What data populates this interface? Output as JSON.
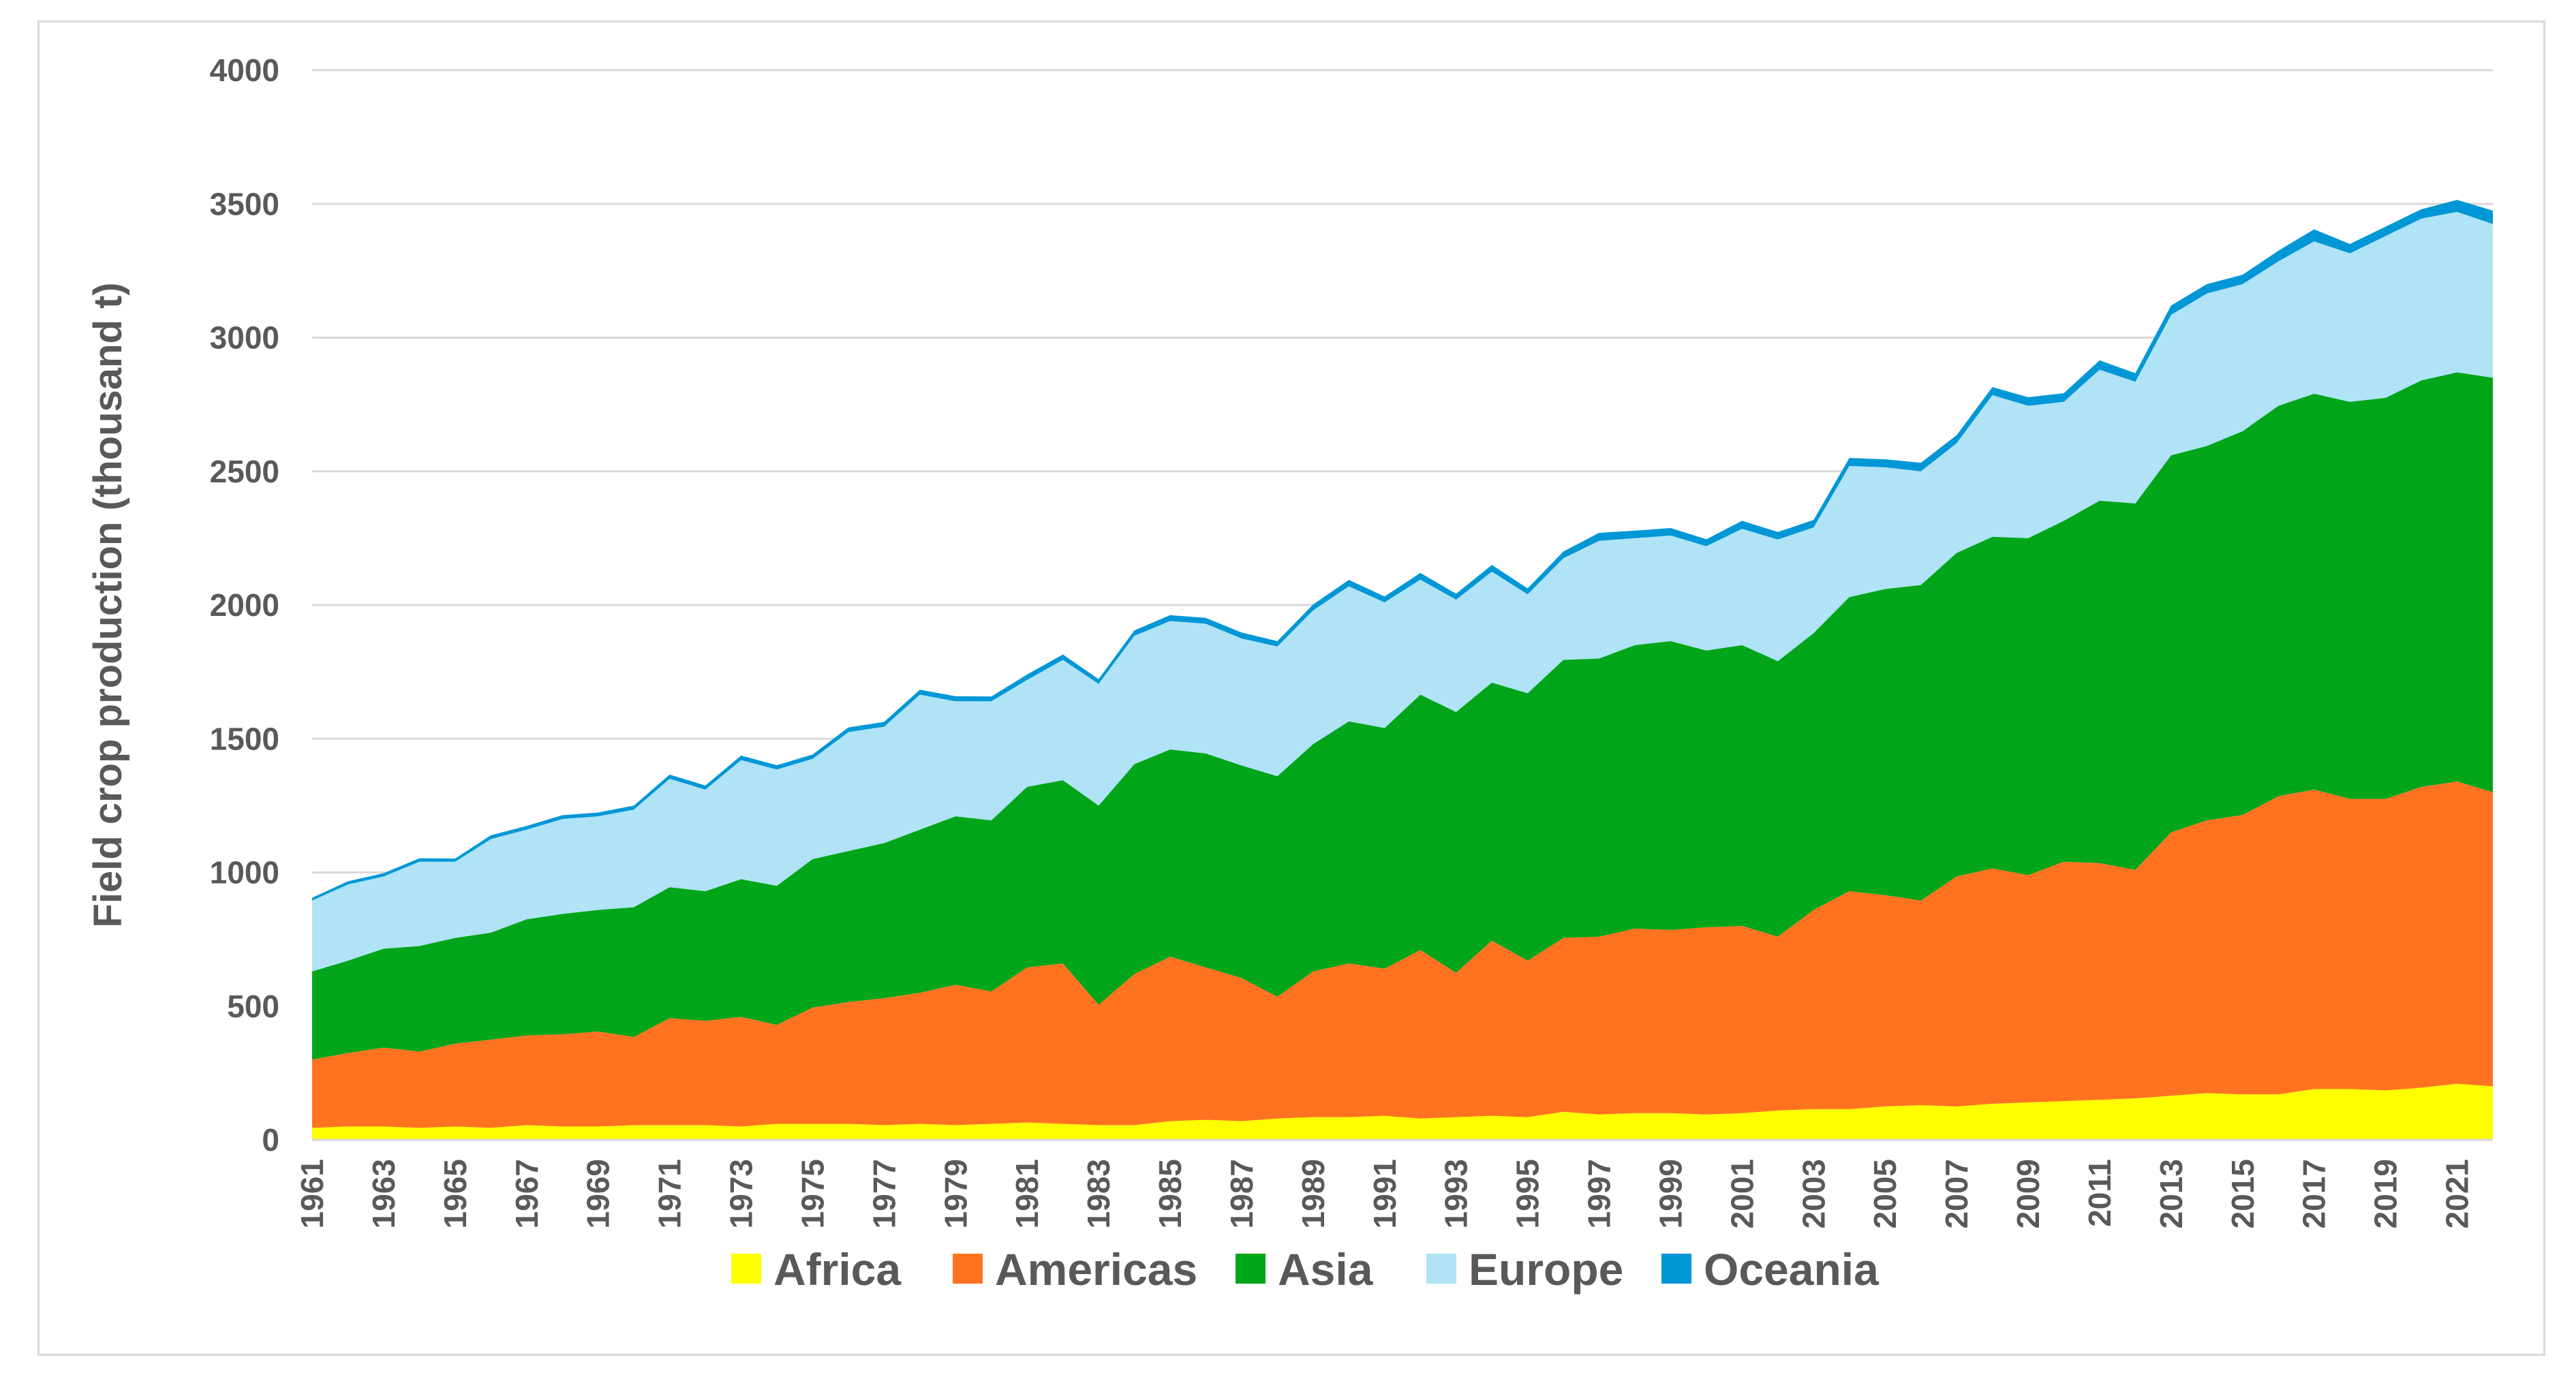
{
  "chart_data": {
    "type": "area",
    "stacked": true,
    "title": "",
    "xlabel": "",
    "ylabel": "Field crop production (thousand t)",
    "ylim": [
      0,
      4000
    ],
    "yticks": [
      0,
      500,
      1000,
      1500,
      2000,
      2500,
      3000,
      3500,
      4000
    ],
    "grid": true,
    "legend_position": "bottom",
    "x": [
      1961,
      1962,
      1963,
      1964,
      1965,
      1966,
      1967,
      1968,
      1969,
      1970,
      1971,
      1972,
      1973,
      1974,
      1975,
      1976,
      1977,
      1978,
      1979,
      1980,
      1981,
      1982,
      1983,
      1984,
      1985,
      1986,
      1987,
      1988,
      1989,
      1990,
      1991,
      1992,
      1993,
      1994,
      1995,
      1996,
      1997,
      1998,
      1999,
      2000,
      2001,
      2002,
      2003,
      2004,
      2005,
      2006,
      2007,
      2008,
      2009,
      2010,
      2011,
      2012,
      2013,
      2014,
      2015,
      2016,
      2017,
      2018,
      2019,
      2020,
      2021,
      2022
    ],
    "x_tick_labels": [
      "1961",
      "1963",
      "1965",
      "1967",
      "1969",
      "1971",
      "1973",
      "1975",
      "1977",
      "1979",
      "1981",
      "1983",
      "1985",
      "1987",
      "1989",
      "1991",
      "1993",
      "1995",
      "1997",
      "1999",
      "2001",
      "2003",
      "2005",
      "2007",
      "2009",
      "2011",
      "2013",
      "2015",
      "2017",
      "2019",
      "2021"
    ],
    "series": [
      {
        "name": "Africa",
        "color": "#ffff00",
        "values": [
          45,
          50,
          50,
          45,
          50,
          45,
          55,
          50,
          50,
          55,
          55,
          55,
          50,
          60,
          60,
          60,
          55,
          60,
          55,
          60,
          65,
          60,
          55,
          55,
          70,
          75,
          70,
          80,
          85,
          85,
          90,
          80,
          85,
          90,
          85,
          105,
          95,
          100,
          100,
          95,
          100,
          110,
          115,
          115,
          125,
          130,
          125,
          135,
          140,
          145,
          150,
          155,
          165,
          175,
          170,
          170,
          190,
          190,
          185,
          195,
          210,
          200
        ]
      },
      {
        "name": "Americas",
        "color": "#ff7320",
        "values": [
          255,
          275,
          295,
          285,
          310,
          330,
          335,
          345,
          355,
          330,
          400,
          390,
          410,
          370,
          435,
          455,
          475,
          490,
          525,
          495,
          580,
          600,
          450,
          565,
          615,
          570,
          535,
          455,
          545,
          575,
          550,
          630,
          540,
          655,
          585,
          650,
          665,
          690,
          685,
          700,
          700,
          650,
          745,
          815,
          790,
          765,
          860,
          880,
          850,
          895,
          885,
          855,
          985,
          1020,
          1045,
          1115,
          1120,
          1085,
          1090,
          1125,
          1130,
          1100
        ]
      },
      {
        "name": "Asia",
        "color": "#00a51a",
        "values": [
          330,
          345,
          370,
          395,
          395,
          400,
          435,
          450,
          455,
          485,
          490,
          485,
          515,
          520,
          555,
          565,
          580,
          610,
          630,
          640,
          675,
          685,
          745,
          785,
          775,
          800,
          795,
          825,
          850,
          905,
          900,
          955,
          975,
          965,
          1000,
          1040,
          1040,
          1060,
          1080,
          1035,
          1050,
          1030,
          1035,
          1100,
          1145,
          1180,
          1210,
          1240,
          1260,
          1275,
          1355,
          1370,
          1410,
          1400,
          1435,
          1460,
          1480,
          1485,
          1500,
          1520,
          1530,
          1550
        ]
      },
      {
        "name": "Europe",
        "color": "#afe3f5",
        "values": [
          265,
          285,
          270,
          315,
          285,
          350,
          335,
          355,
          350,
          365,
          405,
          380,
          445,
          435,
          375,
          445,
          435,
          505,
          430,
          445,
          400,
          450,
          455,
          480,
          480,
          485,
          475,
          485,
          500,
          505,
          470,
          430,
          420,
          415,
          370,
          380,
          440,
          400,
          395,
          390,
          435,
          455,
          395,
          490,
          455,
          425,
          410,
          530,
          495,
          445,
          490,
          455,
          525,
          570,
          550,
          540,
          570,
          555,
          605,
          605,
          600,
          575
        ]
      },
      {
        "name": "Oceania",
        "color": "#0097d6",
        "values": [
          10,
          12,
          12,
          13,
          12,
          14,
          14,
          14,
          14,
          15,
          16,
          15,
          17,
          16,
          16,
          17,
          18,
          18,
          19,
          18,
          20,
          20,
          18,
          20,
          22,
          22,
          22,
          20,
          22,
          24,
          22,
          25,
          22,
          25,
          22,
          25,
          30,
          28,
          28,
          26,
          30,
          28,
          28,
          30,
          30,
          32,
          30,
          30,
          32,
          32,
          35,
          32,
          35,
          35,
          35,
          40,
          45,
          35,
          35,
          35,
          45,
          50
        ]
      }
    ]
  }
}
